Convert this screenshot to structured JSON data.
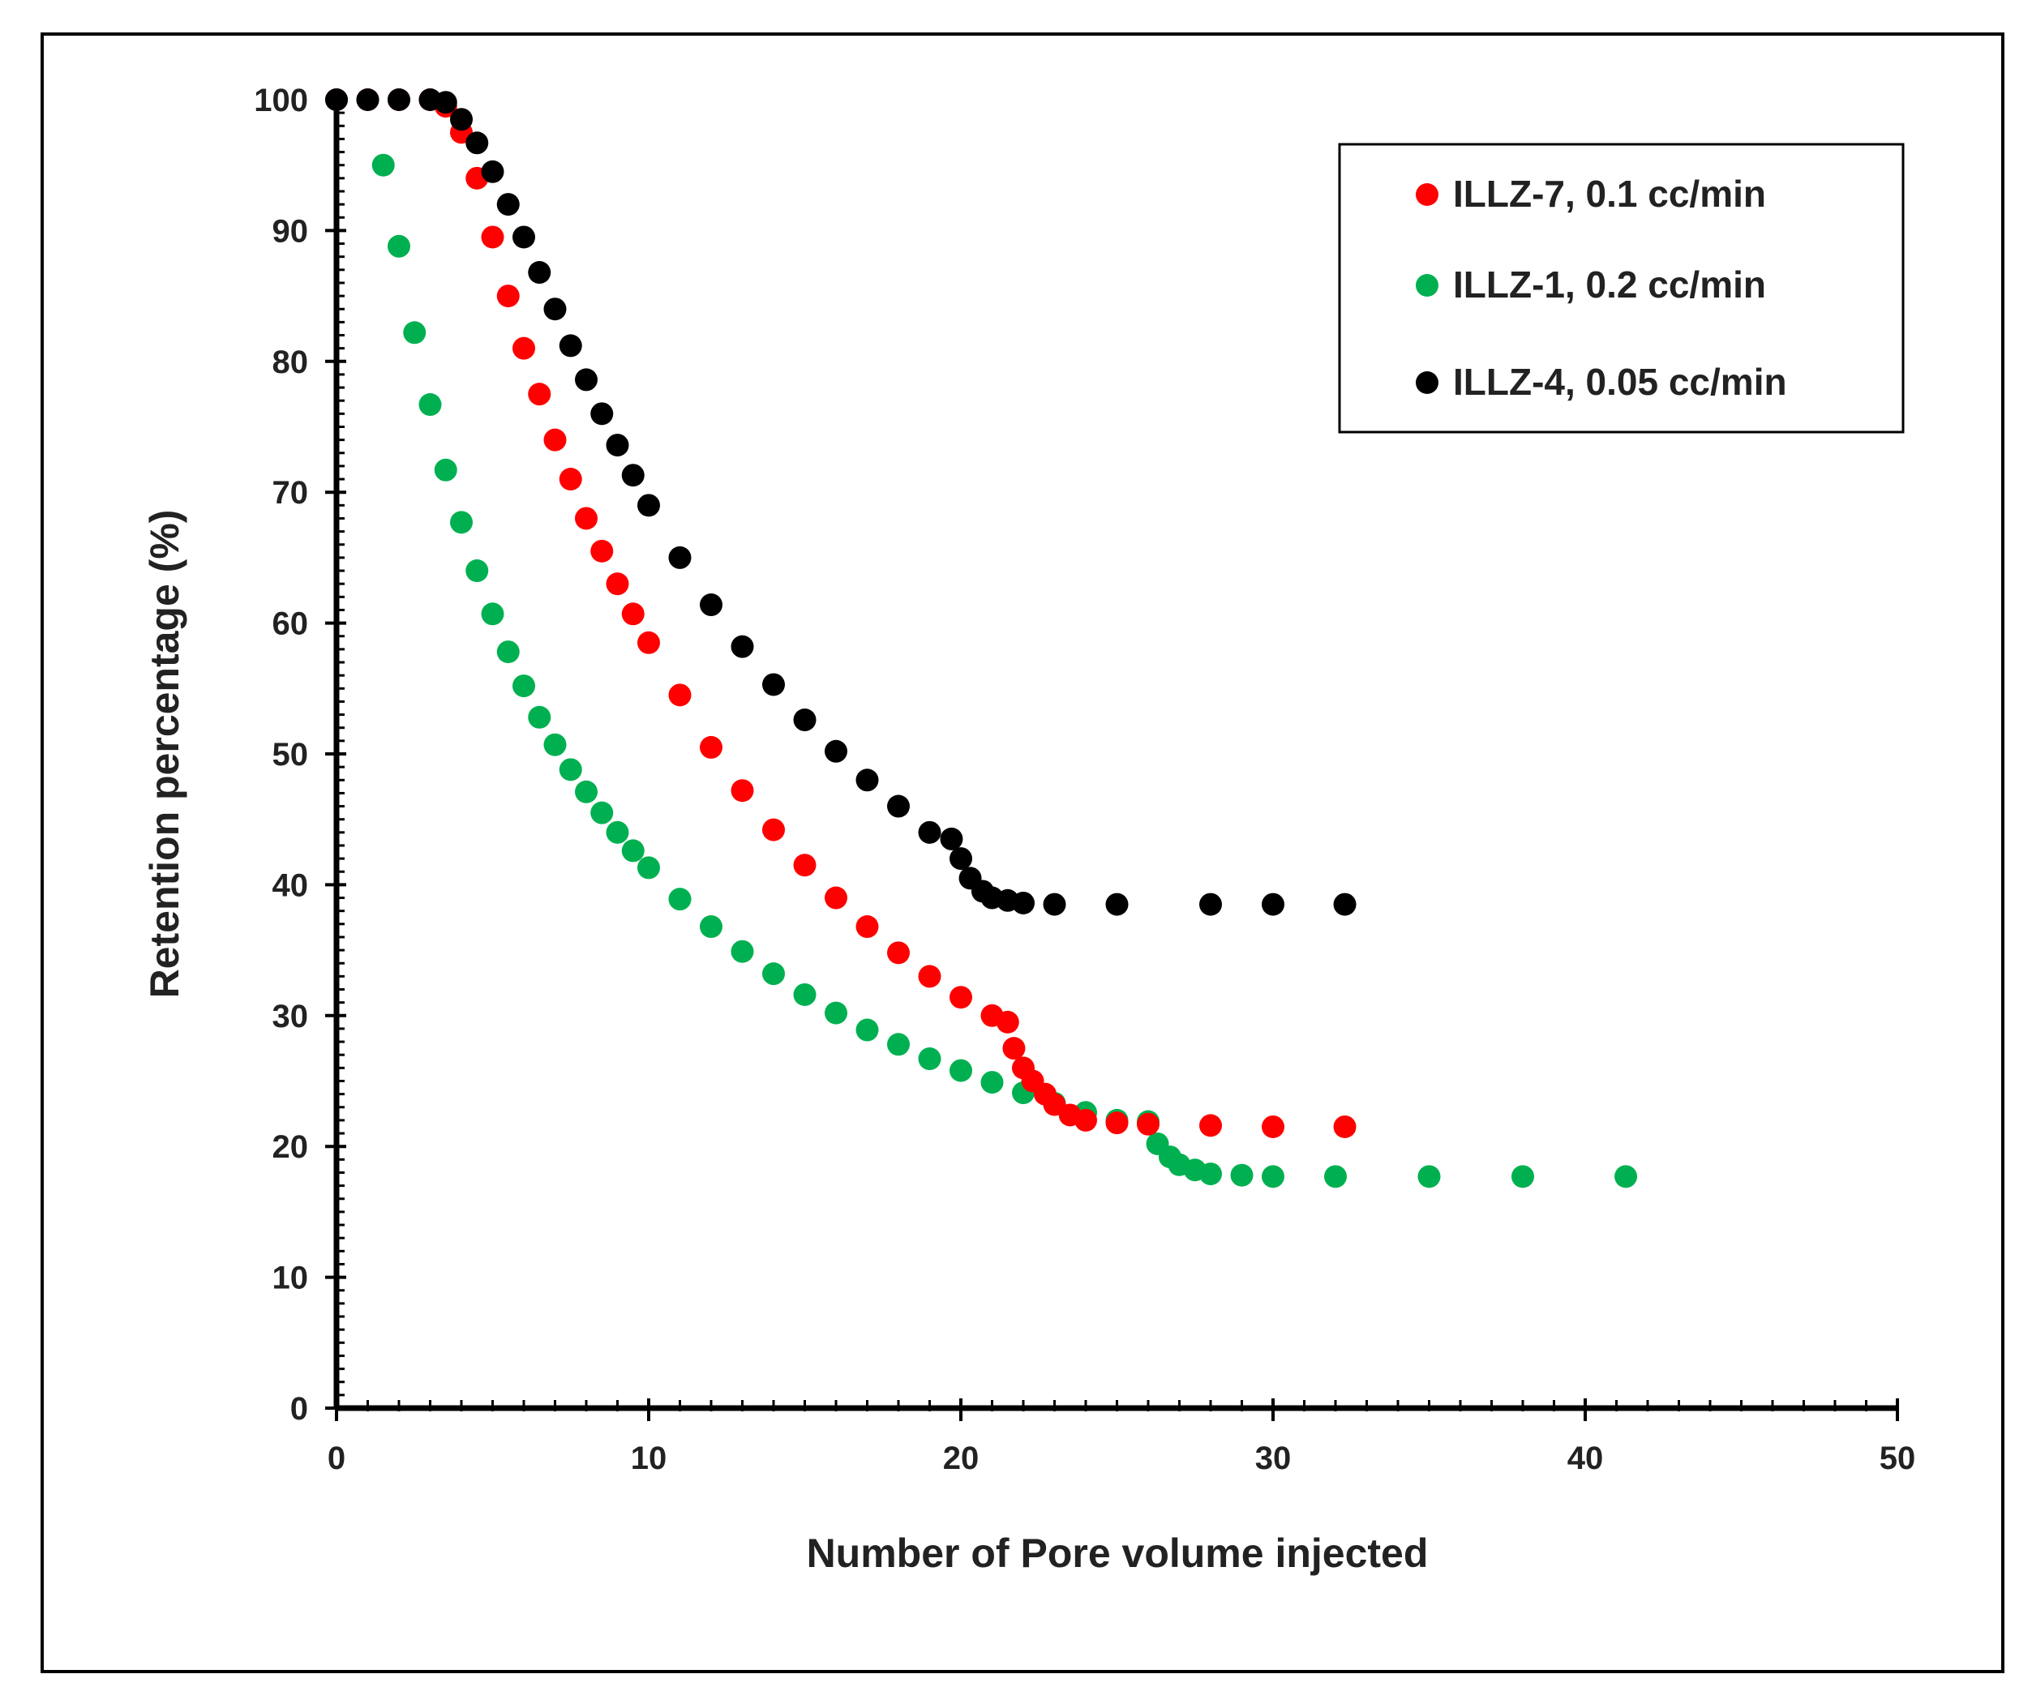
{
  "chart_data": {
    "type": "scatter",
    "title": "",
    "xlabel": "Number of Pore volume injected",
    "ylabel": "Retention percentage (%)",
    "xlim": [
      0,
      50
    ],
    "ylim": [
      0,
      100
    ],
    "x_ticks": [
      "0",
      "10",
      "20",
      "30",
      "40",
      "50"
    ],
    "y_ticks": [
      "0",
      "10",
      "20",
      "30",
      "40",
      "50",
      "60",
      "70",
      "80",
      "90",
      "100"
    ],
    "legend_position": "top-right",
    "series": [
      {
        "name": "ILLZ-7, 0.1 cc/min",
        "color": "#ff0000",
        "x": [
          0,
          1,
          2,
          3,
          3.5,
          4,
          4.5,
          5,
          5.5,
          6,
          6.5,
          7,
          7.5,
          8,
          8.5,
          9,
          9.5,
          10,
          11,
          12,
          13,
          14,
          15,
          16,
          17,
          18,
          19,
          20,
          21,
          21.5,
          21.7,
          22,
          22.3,
          22.7,
          23,
          23.5,
          24,
          25,
          26,
          28,
          30,
          32.3
        ],
        "values": [
          100,
          100,
          100,
          100,
          99.5,
          97.5,
          94,
          89.5,
          85,
          81,
          77.5,
          74,
          71,
          68,
          65.5,
          63,
          60.7,
          58.5,
          54.5,
          50.5,
          47.2,
          44.2,
          41.5,
          39,
          36.8,
          34.8,
          33,
          31.4,
          30,
          29.5,
          27.5,
          26,
          25,
          24,
          23.2,
          22.4,
          22,
          21.8,
          21.7,
          21.6,
          21.5,
          21.5
        ]
      },
      {
        "name": "ILLZ-1, 0.2 cc/min",
        "color": "#00b050",
        "x": [
          0,
          1.5,
          2,
          2.5,
          3,
          3.5,
          4,
          4.5,
          5,
          5.5,
          6,
          6.5,
          7,
          7.5,
          8,
          8.5,
          9,
          9.5,
          10,
          11,
          12,
          13,
          14,
          15,
          16,
          17,
          18,
          19,
          20,
          21,
          22,
          23,
          24,
          25,
          26,
          26.3,
          26.7,
          27,
          27.5,
          28,
          29,
          30,
          32,
          35,
          38,
          41.3
        ],
        "values": [
          100,
          95,
          88.8,
          82.2,
          76.7,
          71.7,
          67.7,
          64,
          60.7,
          57.8,
          55.2,
          52.8,
          50.7,
          48.8,
          47.1,
          45.5,
          44,
          42.6,
          41.3,
          38.9,
          36.8,
          34.9,
          33.2,
          31.6,
          30.2,
          28.9,
          27.8,
          26.7,
          25.8,
          24.9,
          24.1,
          23.3,
          22.6,
          22,
          21.9,
          20.2,
          19.2,
          18.6,
          18.2,
          17.9,
          17.8,
          17.7,
          17.7,
          17.7,
          17.7,
          17.7
        ]
      },
      {
        "name": "ILLZ-4, 0.05 cc/min",
        "color": "#000000",
        "x": [
          0,
          1,
          2,
          3,
          3.5,
          4,
          4.5,
          5,
          5.5,
          6,
          6.5,
          7,
          7.5,
          8,
          8.5,
          9,
          9.5,
          10,
          11,
          12,
          13,
          14,
          15,
          16,
          17,
          18,
          19,
          19.7,
          20,
          20.3,
          20.7,
          21,
          21.5,
          22,
          23,
          25,
          28,
          30,
          32.3
        ],
        "values": [
          100,
          100,
          100,
          100,
          99.8,
          98.5,
          96.7,
          94.5,
          92,
          89.5,
          86.8,
          84,
          81.2,
          78.6,
          76,
          73.6,
          71.3,
          69,
          65,
          61.4,
          58.2,
          55.3,
          52.6,
          50.2,
          48,
          46,
          44,
          43.5,
          42,
          40.5,
          39.5,
          39,
          38.8,
          38.6,
          38.5,
          38.5,
          38.5,
          38.5,
          38.5
        ]
      }
    ]
  }
}
